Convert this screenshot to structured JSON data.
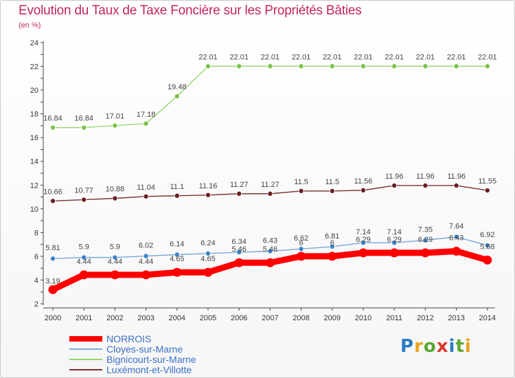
{
  "title": "Evolution du Taux de Taxe Foncière sur les Propriétés Bâties",
  "subtitle": "(en %)",
  "logo": {
    "text": "Proxiti",
    "colors": [
      "#2a7bc0",
      "#e8a21a",
      "#5aa832",
      "#d93a2a",
      "#2a7bc0",
      "#5aa832",
      "#e8a21a"
    ]
  },
  "chart_data": {
    "type": "line",
    "x": [
      "2000",
      "2001",
      "2002",
      "2003",
      "2004",
      "2005",
      "2006",
      "2007",
      "2008",
      "2009",
      "2010",
      "2011",
      "2012",
      "2013",
      "2014"
    ],
    "ylim": [
      2,
      24
    ],
    "yticks": [
      "2",
      "4",
      "6",
      "8",
      "10",
      "12",
      "14",
      "16",
      "18",
      "20",
      "22",
      "24"
    ],
    "grid": false,
    "legend_position": "bottom-left",
    "series": [
      {
        "name": "Bignicourt-sur-Marne",
        "color": "#96d86e",
        "marker": "#7cc24a",
        "values": [
          16.84,
          16.84,
          17.01,
          17.18,
          19.48,
          22.01,
          22.01,
          22.01,
          22.01,
          22.01,
          22.01,
          22.01,
          22.01,
          22.01,
          22.01
        ],
        "labels": [
          "16.84",
          "16.84",
          "17.01",
          "17.18",
          "19.48",
          "22.01",
          "22.01",
          "22.01",
          "22.01",
          "22.01",
          "22.01",
          "22.01",
          "22.01",
          "22.01",
          "22.01"
        ]
      },
      {
        "name": "Luxémont-et-Villotte",
        "color": "#7a3030",
        "marker": "#6b2020",
        "values": [
          10.66,
          10.77,
          10.88,
          11.04,
          11.1,
          11.16,
          11.27,
          11.27,
          11.5,
          11.5,
          11.56,
          11.96,
          11.96,
          11.96,
          11.55
        ],
        "labels": [
          "10.66",
          "10.77",
          "10.88",
          "11.04",
          "11.1",
          "11.16",
          "11.27",
          "11.27",
          "11.5",
          "11.5",
          "11.56",
          "11.96",
          "11.96",
          "11.96",
          "11.55"
        ]
      },
      {
        "name": "Cloyes-sur-Marne",
        "color": "#78a8d8",
        "marker": "#3c82c8",
        "values": [
          5.81,
          5.9,
          5.9,
          6.02,
          6.14,
          6.24,
          6.34,
          6.43,
          6.62,
          6.81,
          7.14,
          7.14,
          7.35,
          7.64,
          6.92
        ],
        "labels": [
          "5.81",
          "5.9",
          "5.9",
          "6.02",
          "6.14",
          "6.24",
          "6.34",
          "6.43",
          "6.62",
          "6.81",
          "7.14",
          "7.14",
          "7.35",
          "7.64",
          "6.92"
        ]
      },
      {
        "name": "NORROIS",
        "color": "#ff0000",
        "marker": "#ff0000",
        "values": [
          3.19,
          4.44,
          4.44,
          4.44,
          4.65,
          4.65,
          5.46,
          5.46,
          6.0,
          6.0,
          6.29,
          6.29,
          6.29,
          6.43,
          5.68
        ],
        "labels": [
          "3.19",
          "4.44",
          "4.44",
          "4.44",
          "4.65",
          "4.65",
          "5.46",
          "5.46",
          "6",
          "6",
          "6.29",
          "6.29",
          "6.29",
          "6.43",
          "5.68"
        ]
      }
    ],
    "legend": [
      {
        "name": "NORROIS",
        "color": "#ff0000"
      },
      {
        "name": "Cloyes-sur-Marne",
        "color": "#78a8d8"
      },
      {
        "name": "Bignicourt-sur-Marne",
        "color": "#96d86e"
      },
      {
        "name": "Luxémont-et-Villotte",
        "color": "#7a3030"
      }
    ]
  }
}
